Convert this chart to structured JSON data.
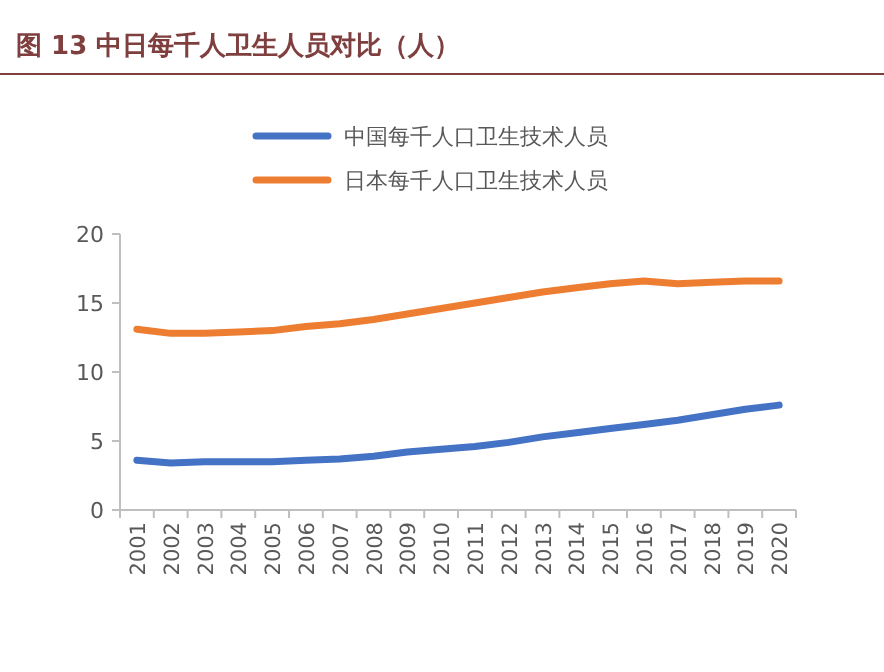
{
  "chart_data": {
    "type": "line",
    "title": "图 13 中日每千人卫生人员对比（人）",
    "categories": [
      "2001",
      "2002",
      "2003",
      "2004",
      "2005",
      "2006",
      "2007",
      "2008",
      "2009",
      "2010",
      "2011",
      "2012",
      "2013",
      "2014",
      "2015",
      "2016",
      "2017",
      "2018",
      "2019",
      "2020"
    ],
    "series": [
      {
        "name": "中国每千人口卫生技术人员",
        "color": "#4472c4",
        "values": [
          3.6,
          3.4,
          3.5,
          3.5,
          3.5,
          3.6,
          3.7,
          3.9,
          4.2,
          4.4,
          4.6,
          4.9,
          5.3,
          5.6,
          5.9,
          6.2,
          6.5,
          6.9,
          7.3,
          7.6
        ]
      },
      {
        "name": "日本每千人口卫生技术人员",
        "color": "#ed7d31",
        "values": [
          13.1,
          12.8,
          12.8,
          12.9,
          13.0,
          13.3,
          13.5,
          13.8,
          14.2,
          14.6,
          15.0,
          15.4,
          15.8,
          16.1,
          16.4,
          16.6,
          16.4,
          16.5,
          16.6,
          16.6
        ]
      }
    ],
    "ylim": [
      0,
      20
    ],
    "yticks": [
      0,
      5,
      10,
      15,
      20
    ],
    "legend": "top left",
    "grid": false,
    "marker": "none",
    "line_style": "solid"
  }
}
